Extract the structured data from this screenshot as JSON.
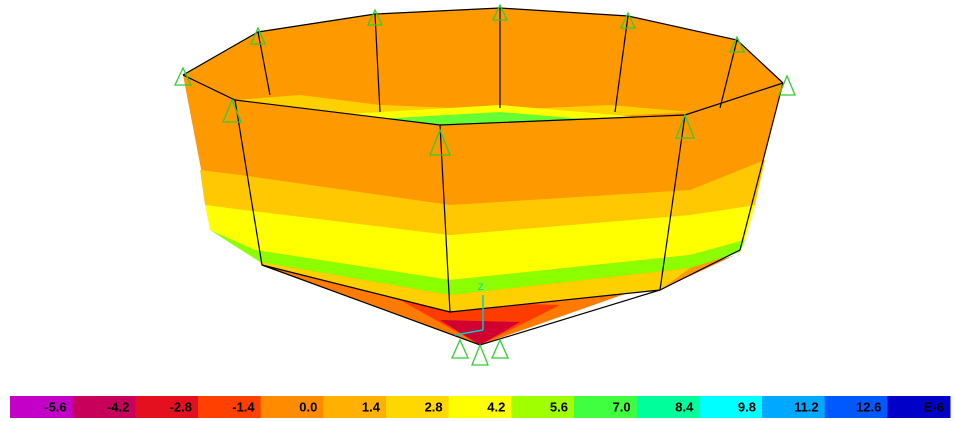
{
  "model_view": {
    "axis_label": "Z"
  },
  "legend": {
    "labels": [
      "-5.6",
      "-4.2",
      "-2.8",
      "-1.4",
      "0.0",
      "1.4",
      "2.8",
      "4.2",
      "5.6",
      "7.0",
      "8.4",
      "9.8",
      "11.2",
      "12.6",
      "E-6"
    ]
  }
}
